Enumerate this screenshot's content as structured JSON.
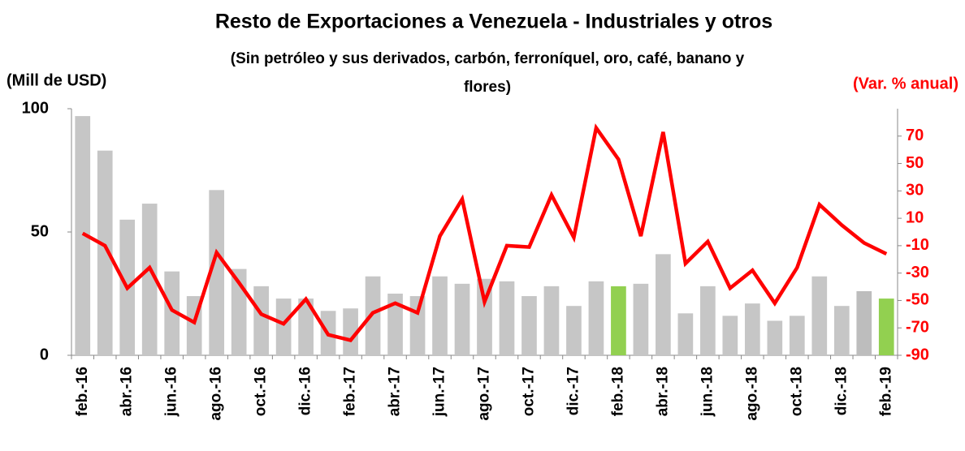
{
  "chart_data": {
    "type": "bar_line",
    "title": "Resto de Exportaciones a Venezuela - Industriales y otros",
    "subtitle": [
      "(Sin petróleo y sus derivados, carbón, ferroníquel, oro, café, banano y",
      "flores)"
    ],
    "ylabel": "(Mill de USD)",
    "y2label": "(Var. % anual)",
    "categories": [
      "feb.-16",
      null,
      "abr.-16",
      null,
      "jun.-16",
      null,
      "ago.-16",
      null,
      "oct.-16",
      null,
      "dic.-16",
      null,
      "feb.-17",
      null,
      "abr.-17",
      null,
      "jun.-17",
      null,
      "ago.-17",
      null,
      "oct.-17",
      null,
      "dic.-17",
      null,
      "feb.-18",
      null,
      "abr.-18",
      null,
      "jun.-18",
      null,
      "ago.-18",
      null,
      "oct.-18",
      null,
      "dic.-18",
      null,
      "feb.-19"
    ],
    "series": [
      {
        "type": "bar",
        "values": [
          97,
          83,
          55,
          61.5,
          34,
          24,
          67,
          35,
          28,
          23,
          23,
          18,
          19,
          32,
          25,
          24,
          32,
          29,
          31,
          30,
          24,
          28,
          20,
          30,
          28,
          29,
          41,
          17,
          28,
          16,
          21,
          14,
          16,
          32,
          20,
          26,
          23
        ],
        "colors": [
          "#c6c6c6",
          "#c6c6c6",
          "#c6c6c6",
          "#c6c6c6",
          "#c6c6c6",
          "#c6c6c6",
          "#c6c6c6",
          "#c6c6c6",
          "#c6c6c6",
          "#c6c6c6",
          "#c6c6c6",
          "#c6c6c6",
          "#c6c6c6",
          "#c6c6c6",
          "#c6c6c6",
          "#c6c6c6",
          "#c6c6c6",
          "#c6c6c6",
          "#c6c6c6",
          "#c6c6c6",
          "#c6c6c6",
          "#c6c6c6",
          "#c6c6c6",
          "#c6c6c6",
          "#92d050",
          "#c6c6c6",
          "#c6c6c6",
          "#c6c6c6",
          "#c6c6c6",
          "#c6c6c6",
          "#c6c6c6",
          "#c6c6c6",
          "#c6c6c6",
          "#c6c6c6",
          "#c6c6c6",
          "#bdbdbd",
          "#92d050"
        ]
      },
      {
        "type": "line",
        "axis": "y2",
        "color": "#ff0000",
        "values": [
          -1,
          -10,
          -41,
          -26,
          -57,
          -66,
          -15,
          -37,
          -60,
          -67,
          -49,
          -75,
          -79,
          -59,
          -52,
          -59,
          -3,
          24,
          -51,
          -10,
          -11,
          27,
          -4,
          76,
          53,
          -3,
          73,
          -23,
          -7,
          -41,
          -28,
          -52,
          -26,
          20,
          5,
          -8,
          -16
        ]
      }
    ],
    "ylim": [
      0,
      100
    ],
    "yticks": [
      0,
      50,
      100
    ],
    "y2lim": [
      -90,
      90
    ],
    "y2ticks": [
      -90,
      -70,
      -50,
      -30,
      -10,
      10,
      30,
      50,
      70
    ],
    "y2color": "#ff0000"
  }
}
